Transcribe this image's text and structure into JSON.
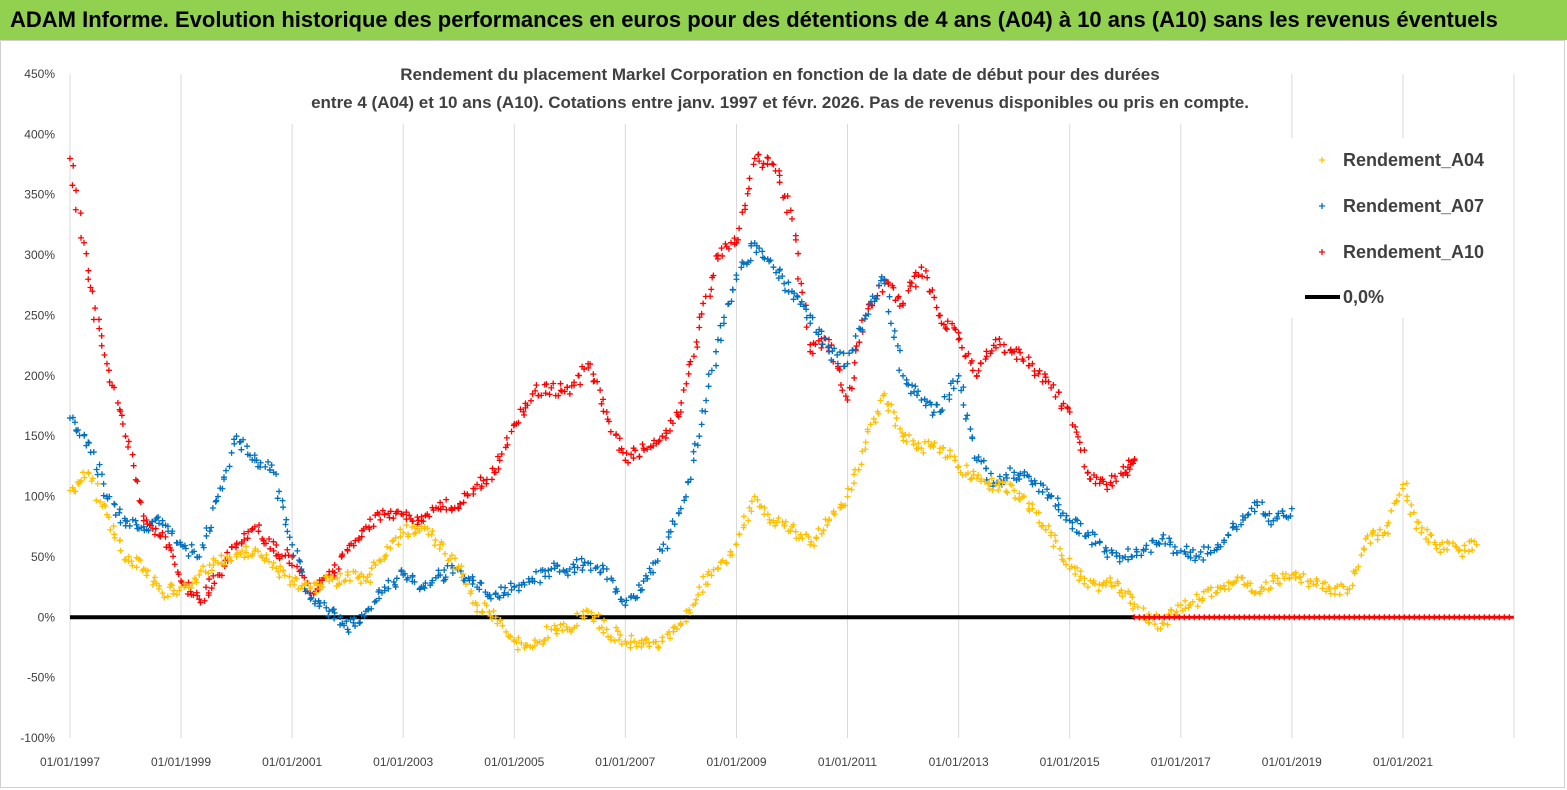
{
  "header": {
    "title": "ADAM Informe. Evolution historique des performances en euros pour des détentions de 4 ans (A04) à 10 ans (A10) sans les revenus éventuels"
  },
  "chart_data": {
    "type": "scatter",
    "title_line1": "Rendement du placement Markel Corporation en fonction de la date de début pour des durées",
    "title_line2": "entre 4 (A04) et 10 ans (A10). Cotations entre janv. 1997 et févr. 2026. Pas de revenus disponibles ou pris en compte.",
    "xlabel": "",
    "ylabel": "",
    "x_ticks": [
      "01/01/1997",
      "01/01/1999",
      "01/01/2001",
      "01/01/2003",
      "01/01/2005",
      "01/01/2007",
      "01/01/2009",
      "01/01/2011",
      "01/01/2013",
      "01/01/2015",
      "01/01/2017",
      "01/01/2019",
      "01/01/2021"
    ],
    "xlim": [
      "1997-01-01",
      "2023-01-01"
    ],
    "y_ticks": [
      "450%",
      "400%",
      "350%",
      "300%",
      "250%",
      "200%",
      "150%",
      "100%",
      "50%",
      "0%",
      "-50%",
      "-100%"
    ],
    "ylim": [
      -100,
      450
    ],
    "grid": "vertical",
    "legend_position": "top-right",
    "series": [
      {
        "name": "Rendement_A04",
        "color": "#ffc000",
        "marker": "plus",
        "points": [
          [
            "1997-01",
            105
          ],
          [
            "1997-05",
            120
          ],
          [
            "1997-09",
            85
          ],
          [
            "1998-01",
            48
          ],
          [
            "1998-05",
            40
          ],
          [
            "1998-09",
            20
          ],
          [
            "1999-01",
            25
          ],
          [
            "1999-05",
            35
          ],
          [
            "1999-09",
            45
          ],
          [
            "2000-01",
            50
          ],
          [
            "2000-05",
            55
          ],
          [
            "2000-09",
            45
          ],
          [
            "2001-01",
            30
          ],
          [
            "2001-05",
            25
          ],
          [
            "2001-09",
            30
          ],
          [
            "2002-01",
            35
          ],
          [
            "2002-05",
            30
          ],
          [
            "2002-09",
            50
          ],
          [
            "2003-01",
            70
          ],
          [
            "2003-05",
            75
          ],
          [
            "2003-09",
            60
          ],
          [
            "2004-01",
            40
          ],
          [
            "2004-05",
            10
          ],
          [
            "2004-09",
            0
          ],
          [
            "2005-01",
            -20
          ],
          [
            "2005-05",
            -25
          ],
          [
            "2005-09",
            -10
          ],
          [
            "2006-01",
            -10
          ],
          [
            "2006-05",
            5
          ],
          [
            "2006-09",
            -10
          ],
          [
            "2007-01",
            -20
          ],
          [
            "2007-05",
            -22
          ],
          [
            "2007-09",
            -20
          ],
          [
            "2008-01",
            -5
          ],
          [
            "2008-05",
            25
          ],
          [
            "2008-09",
            40
          ],
          [
            "2009-01",
            60
          ],
          [
            "2009-05",
            100
          ],
          [
            "2009-09",
            80
          ],
          [
            "2010-01",
            75
          ],
          [
            "2010-05",
            60
          ],
          [
            "2010-09",
            80
          ],
          [
            "2011-01",
            100
          ],
          [
            "2011-05",
            145
          ],
          [
            "2011-09",
            185
          ],
          [
            "2012-01",
            150
          ],
          [
            "2012-05",
            140
          ],
          [
            "2012-09",
            140
          ],
          [
            "2013-01",
            125
          ],
          [
            "2013-05",
            115
          ],
          [
            "2013-09",
            110
          ],
          [
            "2014-01",
            105
          ],
          [
            "2014-05",
            90
          ],
          [
            "2014-09",
            70
          ],
          [
            "2015-01",
            40
          ],
          [
            "2015-05",
            25
          ],
          [
            "2015-09",
            30
          ],
          [
            "2016-01",
            20
          ],
          [
            "2016-05",
            0
          ],
          [
            "2016-09",
            -5
          ],
          [
            "2017-01",
            10
          ],
          [
            "2017-05",
            15
          ],
          [
            "2017-09",
            25
          ],
          [
            "2018-01",
            30
          ],
          [
            "2018-05",
            20
          ],
          [
            "2018-09",
            30
          ],
          [
            "2019-01",
            35
          ],
          [
            "2019-05",
            30
          ],
          [
            "2019-09",
            25
          ],
          [
            "2020-01",
            20
          ],
          [
            "2020-05",
            65
          ],
          [
            "2020-09",
            70
          ],
          [
            "2021-01",
            110
          ],
          [
            "2021-05",
            70
          ],
          [
            "2021-09",
            60
          ],
          [
            "2022-01",
            55
          ],
          [
            "2022-05",
            60
          ]
        ]
      },
      {
        "name": "Rendement_A07",
        "color": "#0070c0",
        "marker": "plus",
        "points": [
          [
            "1997-01",
            165
          ],
          [
            "1997-05",
            145
          ],
          [
            "1997-09",
            100
          ],
          [
            "1998-01",
            80
          ],
          [
            "1998-05",
            75
          ],
          [
            "1998-09",
            80
          ],
          [
            "1999-01",
            60
          ],
          [
            "1999-05",
            50
          ],
          [
            "1999-09",
            100
          ],
          [
            "2000-01",
            150
          ],
          [
            "2000-05",
            130
          ],
          [
            "2000-09",
            120
          ],
          [
            "2001-01",
            60
          ],
          [
            "2001-05",
            15
          ],
          [
            "2001-09",
            5
          ],
          [
            "2002-01",
            -10
          ],
          [
            "2002-05",
            5
          ],
          [
            "2002-09",
            25
          ],
          [
            "2003-01",
            35
          ],
          [
            "2003-05",
            25
          ],
          [
            "2003-09",
            35
          ],
          [
            "2004-01",
            40
          ],
          [
            "2004-05",
            25
          ],
          [
            "2004-09",
            20
          ],
          [
            "2005-01",
            25
          ],
          [
            "2005-05",
            30
          ],
          [
            "2005-09",
            40
          ],
          [
            "2006-01",
            40
          ],
          [
            "2006-05",
            45
          ],
          [
            "2006-09",
            40
          ],
          [
            "2007-01",
            10
          ],
          [
            "2007-05",
            30
          ],
          [
            "2007-09",
            55
          ],
          [
            "2008-01",
            90
          ],
          [
            "2008-05",
            150
          ],
          [
            "2008-09",
            230
          ],
          [
            "2009-01",
            280
          ],
          [
            "2009-05",
            310
          ],
          [
            "2009-09",
            290
          ],
          [
            "2010-01",
            270
          ],
          [
            "2010-05",
            250
          ],
          [
            "2010-09",
            220
          ],
          [
            "2011-01",
            210
          ],
          [
            "2011-05",
            250
          ],
          [
            "2011-09",
            280
          ],
          [
            "2012-01",
            200
          ],
          [
            "2012-05",
            180
          ],
          [
            "2012-09",
            170
          ],
          [
            "2013-01",
            200
          ],
          [
            "2013-05",
            130
          ],
          [
            "2013-09",
            110
          ],
          [
            "2014-01",
            120
          ],
          [
            "2014-05",
            110
          ],
          [
            "2014-09",
            100
          ],
          [
            "2015-01",
            80
          ],
          [
            "2015-05",
            70
          ],
          [
            "2015-09",
            55
          ],
          [
            "2016-01",
            50
          ],
          [
            "2016-05",
            55
          ],
          [
            "2016-09",
            65
          ],
          [
            "2017-01",
            55
          ],
          [
            "2017-05",
            50
          ],
          [
            "2017-09",
            60
          ],
          [
            "2018-01",
            75
          ],
          [
            "2018-05",
            95
          ],
          [
            "2018-09",
            80
          ],
          [
            "2019-01",
            90
          ]
        ]
      },
      {
        "name": "Rendement_A10",
        "color": "#ff0000",
        "marker": "plus",
        "points": [
          [
            "1997-01",
            380
          ],
          [
            "1997-05",
            280
          ],
          [
            "1997-09",
            210
          ],
          [
            "1998-01",
            150
          ],
          [
            "1998-05",
            80
          ],
          [
            "1998-09",
            70
          ],
          [
            "1999-01",
            30
          ],
          [
            "1999-05",
            15
          ],
          [
            "1999-09",
            35
          ],
          [
            "2000-01",
            60
          ],
          [
            "2000-05",
            75
          ],
          [
            "2000-09",
            55
          ],
          [
            "2001-01",
            50
          ],
          [
            "2001-05",
            20
          ],
          [
            "2001-09",
            35
          ],
          [
            "2002-01",
            55
          ],
          [
            "2002-05",
            75
          ],
          [
            "2002-09",
            85
          ],
          [
            "2003-01",
            85
          ],
          [
            "2003-05",
            80
          ],
          [
            "2003-09",
            95
          ],
          [
            "2004-01",
            90
          ],
          [
            "2004-05",
            110
          ],
          [
            "2004-09",
            120
          ],
          [
            "2005-01",
            160
          ],
          [
            "2005-05",
            185
          ],
          [
            "2005-09",
            190
          ],
          [
            "2006-01",
            185
          ],
          [
            "2006-05",
            210
          ],
          [
            "2006-09",
            170
          ],
          [
            "2007-01",
            130
          ],
          [
            "2007-05",
            140
          ],
          [
            "2007-09",
            150
          ],
          [
            "2008-01",
            170
          ],
          [
            "2008-05",
            240
          ],
          [
            "2008-09",
            300
          ],
          [
            "2009-01",
            310
          ],
          [
            "2009-05",
            380
          ],
          [
            "2009-09",
            375
          ],
          [
            "2010-01",
            330
          ],
          [
            "2010-05",
            220
          ],
          [
            "2010-09",
            230
          ],
          [
            "2011-01",
            180
          ],
          [
            "2011-05",
            250
          ],
          [
            "2011-09",
            280
          ],
          [
            "2012-01",
            260
          ],
          [
            "2012-05",
            290
          ],
          [
            "2012-09",
            250
          ],
          [
            "2013-01",
            230
          ],
          [
            "2013-05",
            200
          ],
          [
            "2013-09",
            230
          ],
          [
            "2014-01",
            220
          ],
          [
            "2014-05",
            210
          ],
          [
            "2014-09",
            190
          ],
          [
            "2015-01",
            170
          ],
          [
            "2015-05",
            120
          ],
          [
            "2015-09",
            110
          ],
          [
            "2016-01",
            120
          ],
          [
            "2016-03",
            130
          ]
        ]
      },
      {
        "name": "0,0%",
        "color": "#000000",
        "marker": "line",
        "points": [
          [
            "1997-01-01",
            0
          ],
          [
            "2016-03-01",
            0
          ]
        ]
      }
    ],
    "a10_zero_segment": {
      "color": "#ff0000",
      "from": "2016-03-01",
      "to": "2022-12-31",
      "value": 0
    }
  }
}
